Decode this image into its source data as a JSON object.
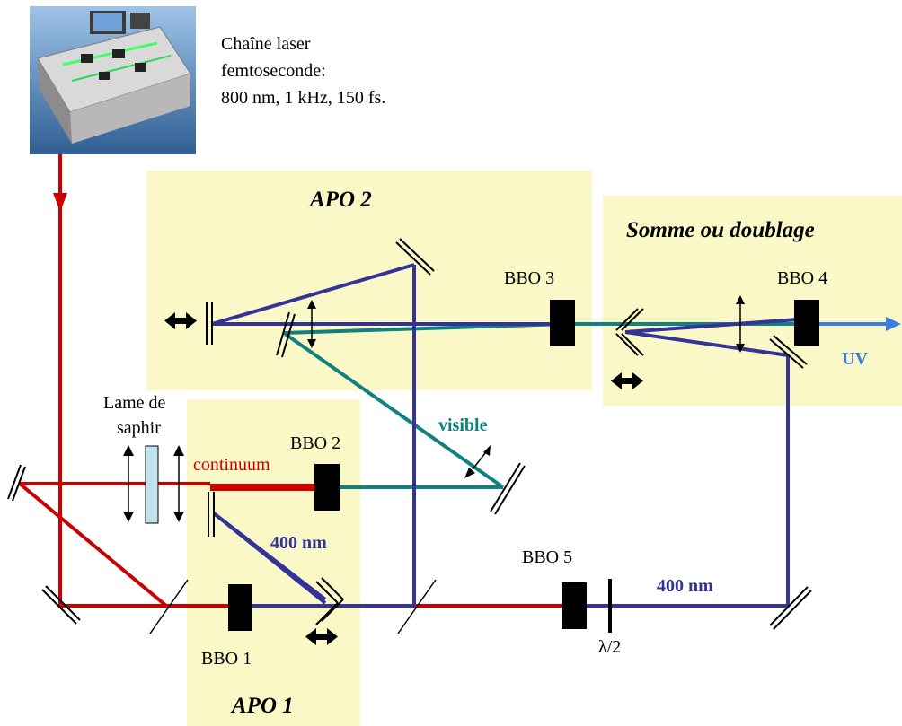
{
  "colors": {
    "red_beam": "#cc0000",
    "blue_beam": "#333399",
    "teal_beam": "#118080",
    "uv_beam": "#3a7fe0",
    "zone_fill": "#fbf8c8",
    "crystal": "#000000",
    "plate_fill": "#bfe3e8"
  },
  "laser": {
    "image_icon": "femtosecond-laser-photo",
    "caption_line1": "Chaîne laser",
    "caption_line2": "femtoseconde:",
    "caption_line3": "800 nm, 1 kHz, 150 fs."
  },
  "zones": {
    "apo2": "APO 2",
    "somme": "Somme ou doublage",
    "apo1": "APO 1"
  },
  "crystals": {
    "bbo1": "BBO 1",
    "bbo2": "BBO 2",
    "bbo3": "BBO 3",
    "bbo4": "BBO 4",
    "bbo5": "BBO 5"
  },
  "labels": {
    "lame_line1": "Lame de",
    "lame_line2": "saphir",
    "continuum": "continuum",
    "visible": "visible",
    "nm400_left": "400 nm",
    "nm400_right": "400 nm",
    "uv": "UV",
    "lambda_half": "λ/2"
  }
}
